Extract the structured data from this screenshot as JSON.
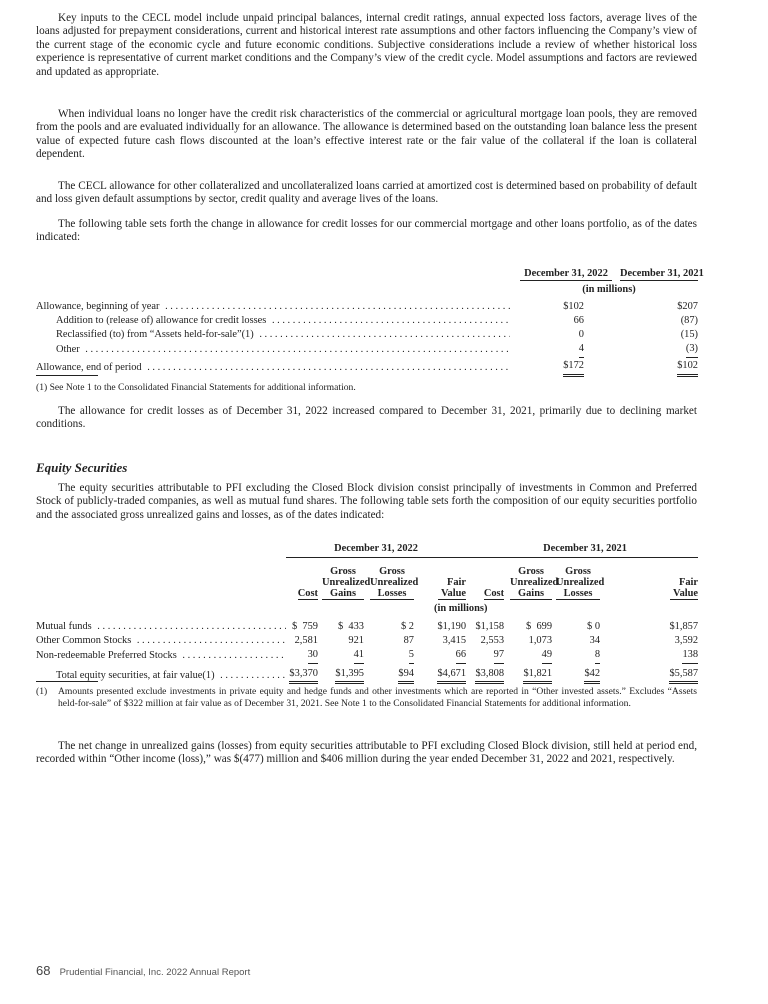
{
  "paragraphs": [
    "Key inputs to the CECL model include unpaid principal balances, internal credit ratings, annual expected loss factors, average lives of the loans adjusted for prepayment considerations, current and historical interest rate assumptions and other factors influencing the Company’s view of the current stage of the economic cycle and future economic conditions. Subjective considerations include a review of whether historical loss experience is representative of current market conditions and the Company’s view of the credit cycle. Model assumptions and factors are reviewed and updated as appropriate.",
    "When individual loans no longer have the credit risk characteristics of the commercial or agricultural mortgage loan pools, they are removed from the pools and are evaluated individually for an allowance. The allowance is determined based on the outstanding loan balance less the present value of expected future cash flows discounted at the loan’s effective interest rate or the fair value of the collateral if the loan is collateral dependent.",
    "The CECL allowance for other collateralized and uncollateralized loans carried at amortized cost is determined based on probability of default and loss given default assumptions by sector, credit quality and average lives of the loans.",
    "The following table sets forth the change in allowance for credit losses for our commercial mortgage and other loans portfolio, as of the dates indicated:",
    "The allowance for credit losses as of December 31, 2022 increased compared to December 31, 2021, primarily due to declining market conditions.",
    "The equity securities attributable to PFI excluding the Closed Block division consist principally of investments in Common and Preferred Stock of publicly-traded companies, as well as mutual fund shares. The following table sets forth the composition of our equity securities portfolio and the associated gross unrealized gains and losses, as of the dates indicated:",
    "The net change in unrealized gains (losses) from equity securities attributable to PFI excluding Closed Block division, still held at period end, recorded within “Other income (loss),” was $(477) million and $406 million during the year ended December 31, 2022 and 2021, respectively."
  ],
  "allowance_table": {
    "columns": [
      "December 31, 2022",
      "December 31, 2021"
    ],
    "units": "(in millions)",
    "rows": [
      {
        "label": "Allowance, beginning of year",
        "values": [
          "$102",
          "$207"
        ]
      },
      {
        "label": "Addition to (release of) allowance for credit losses",
        "values": [
          "66",
          "(87)"
        ]
      },
      {
        "label": "Reclassified (to) from “Assets held-for-sale”(1)",
        "values": [
          "0",
          "(15)"
        ]
      },
      {
        "label": "Other",
        "values": [
          "4",
          "(3)"
        ]
      },
      {
        "label": "Allowance, end of period",
        "values": [
          "$172",
          "$102"
        ]
      }
    ],
    "footnote": "(1)   See Note 1 to the Consolidated Financial Statements for additional information."
  },
  "section_heading": "Equity Securities",
  "equity_table": {
    "groups": [
      "December 31, 2022",
      "December 31, 2021"
    ],
    "columns": [
      "Cost",
      "Gross Unrealized Gains",
      "Gross Unrealized Losses",
      "Fair Value",
      "Cost",
      "Gross Unrealized Gains",
      "Gross Unrealized Losses",
      "Fair Value"
    ],
    "units": "(in millions)",
    "rows": [
      {
        "label": "Mutual funds",
        "values": [
          "$  759",
          "$  433",
          "$ 2",
          "$1,190",
          "$1,158",
          "$  699",
          "$ 0",
          "$1,857"
        ]
      },
      {
        "label": "Other Common Stocks",
        "values": [
          "2,581",
          "921",
          "87",
          "3,415",
          "2,553",
          "1,073",
          "34",
          "3,592"
        ]
      },
      {
        "label": "Non-redeemable Preferred Stocks",
        "values": [
          "30",
          "41",
          "5",
          "66",
          "97",
          "49",
          "8",
          "138"
        ]
      },
      {
        "label": "Total equity securities, at fair value(1)",
        "values": [
          "$3,370",
          "$1,395",
          "$94",
          "$4,671",
          "$3,808",
          "$1,821",
          "$42",
          "$5,587"
        ]
      }
    ],
    "footnote": "Amounts presented exclude investments in private equity and hedge funds and other investments which are reported in “Other invested assets.” Excludes “Assets held-for-sale” of $322 million at fair value as of December 31, 2021. See Note 1 to the Consolidated Financial Statements for additional information.",
    "footnote_marker": "(1)"
  },
  "footer": {
    "page_number": "68",
    "report_title": "Prudential Financial, Inc. 2022 Annual Report"
  }
}
